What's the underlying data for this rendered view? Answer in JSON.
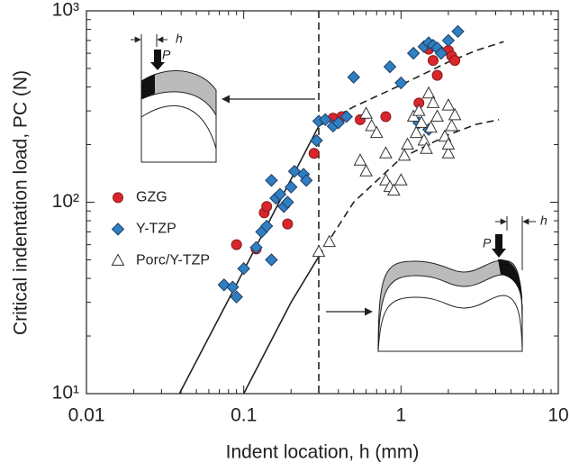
{
  "chart_data": {
    "type": "scatter",
    "x_label": "Indent location, h (mm)",
    "y_label": "Critical indentation load, PC (N)",
    "log_x": true,
    "log_y": true,
    "xlim": [
      0.01,
      10
    ],
    "ylim": [
      10,
      1000
    ],
    "xticks": [
      0.01,
      0.1,
      1,
      10
    ],
    "yticks": [
      {
        "value": 10,
        "label": "10¹"
      },
      {
        "value": 100,
        "label": "10²"
      },
      {
        "value": 1000,
        "label": "10³"
      }
    ],
    "x_minor_ticks": [
      0.02,
      0.03,
      0.04,
      0.05,
      0.06,
      0.07,
      0.08,
      0.09,
      0.2,
      0.3,
      0.4,
      0.5,
      0.6,
      0.7,
      0.8,
      0.9,
      2,
      3,
      4,
      5,
      6,
      7,
      8,
      9
    ],
    "y_minor_ticks": [
      20,
      30,
      40,
      50,
      60,
      70,
      80,
      90,
      200,
      300,
      400,
      500,
      600,
      700,
      800,
      900
    ],
    "legend_position": "center-left",
    "vline": 0.3,
    "series": [
      {
        "name": "GZG",
        "color": "#d9262c",
        "marker": "circle",
        "x": [
          0.09,
          0.12,
          0.135,
          0.14,
          0.19,
          0.28,
          0.37,
          0.42,
          0.55,
          0.8,
          1.3,
          1.5,
          1.6,
          1.7,
          2.0,
          2.1,
          2.2
        ],
        "y": [
          60,
          57,
          88,
          95,
          77,
          180,
          275,
          280,
          270,
          280,
          330,
          630,
          550,
          460,
          620,
          580,
          550
        ]
      },
      {
        "name": "Y-TZP",
        "color": "#2f7fc1",
        "marker": "diamond",
        "x": [
          0.075,
          0.085,
          0.09,
          0.1,
          0.12,
          0.13,
          0.14,
          0.15,
          0.15,
          0.16,
          0.17,
          0.18,
          0.19,
          0.2,
          0.21,
          0.24,
          0.25,
          0.29,
          0.3,
          0.33,
          0.37,
          0.4,
          0.45,
          0.5,
          0.85,
          1,
          1.2,
          1.4,
          1.5,
          1.6,
          1.7,
          1.8,
          2,
          2.3,
          1.3,
          1.5
        ],
        "y": [
          37,
          36,
          32,
          45,
          58,
          70,
          75,
          50,
          130,
          105,
          110,
          95,
          100,
          120,
          145,
          140,
          130,
          210,
          265,
          270,
          250,
          260,
          280,
          450,
          510,
          420,
          600,
          650,
          680,
          660,
          640,
          600,
          700,
          780,
          260,
          240
        ]
      },
      {
        "name": "Porc/Y-TZP",
        "color": "#ffffff",
        "marker": "triangle",
        "x": [
          0.3,
          0.35,
          0.55,
          0.6,
          0.6,
          0.65,
          0.7,
          0.8,
          0.8,
          0.85,
          0.9,
          1,
          1.05,
          1.1,
          1.2,
          1.25,
          1.3,
          1.35,
          1.4,
          1.45,
          1.5,
          1.55,
          1.6,
          1.7,
          1.9,
          2,
          2,
          2,
          2.1,
          2.2
        ],
        "y": [
          55,
          62,
          165,
          145,
          290,
          250,
          230,
          180,
          130,
          120,
          115,
          130,
          175,
          200,
          280,
          230,
          300,
          260,
          210,
          190,
          370,
          245,
          330,
          280,
          220,
          180,
          200,
          320,
          250,
          285
        ]
      }
    ],
    "fits": [
      {
        "dash": false,
        "x": [
          0.039,
          0.1,
          0.2,
          0.3
        ],
        "y": [
          10,
          44,
          132,
          250
        ]
      },
      {
        "dash": true,
        "x": [
          0.3,
          0.5,
          1,
          2,
          3,
          4.5
        ],
        "y": [
          250,
          315,
          410,
          540,
          620,
          690
        ]
      },
      {
        "dash": false,
        "x": [
          0.1,
          0.2,
          0.3
        ],
        "y": [
          10,
          30,
          52
        ]
      },
      {
        "dash": true,
        "x": [
          0.3,
          0.5,
          1,
          2,
          3,
          4.2
        ],
        "y": [
          52,
          100,
          170,
          225,
          255,
          270
        ]
      }
    ],
    "insets": [
      {
        "location_label": "h",
        "load_label": "P"
      },
      {
        "location_label": "h",
        "load_label": "P"
      }
    ]
  }
}
